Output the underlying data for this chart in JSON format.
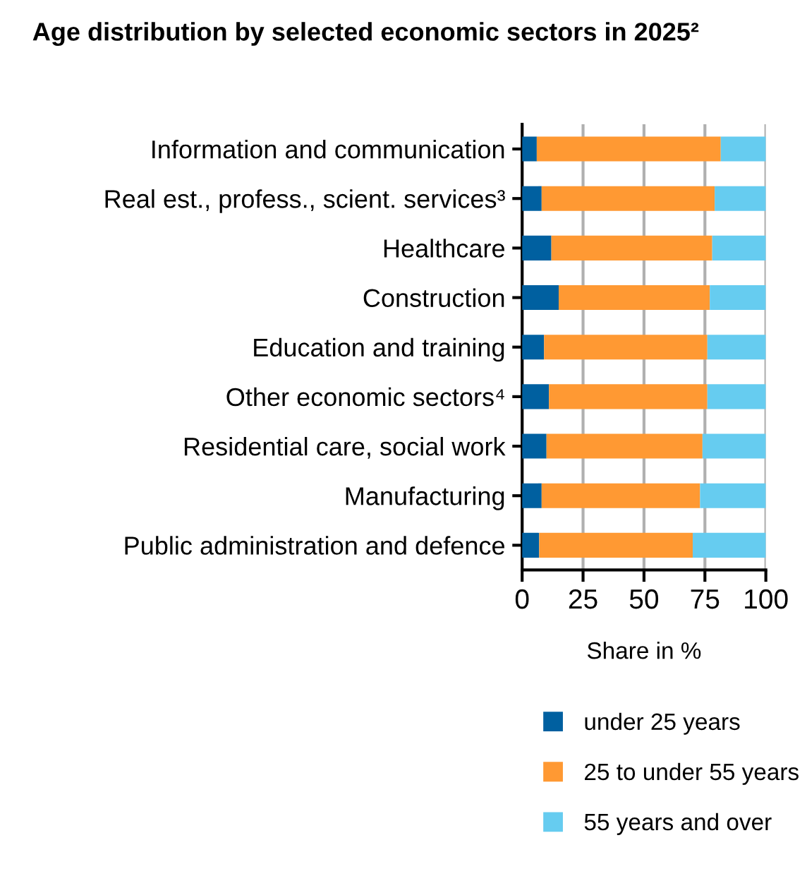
{
  "chart_data": {
    "type": "bar",
    "orientation": "horizontal",
    "stacked": true,
    "title": "Age distribution by selected economic sectors in 2025²",
    "xlabel": "Share in %",
    "categories": [
      "Information and communication",
      "Real est., profess., scient. services³",
      "Healthcare",
      "Construction",
      "Education and training",
      "Other economic sectors⁴",
      "Residential care, social work",
      "Manufacturing",
      "Public administration and defence"
    ],
    "series": [
      {
        "name": "under 25 years",
        "color": "#0060a0",
        "values": [
          6,
          8,
          12,
          15,
          9,
          11,
          10,
          8,
          7
        ]
      },
      {
        "name": "25 to under 55 years",
        "color": "#ff9933",
        "values": [
          75.5,
          71,
          66,
          62,
          67,
          65,
          64,
          65,
          63
        ]
      },
      {
        "name": "55 years and over",
        "color": "#66ccf0",
        "values": [
          18.5,
          21,
          22,
          23,
          24,
          24,
          26,
          27,
          30
        ]
      }
    ],
    "xlim": [
      0,
      100
    ],
    "xticks": [
      0,
      25,
      50,
      75,
      100
    ],
    "grid": "x",
    "legend": "bottom"
  }
}
